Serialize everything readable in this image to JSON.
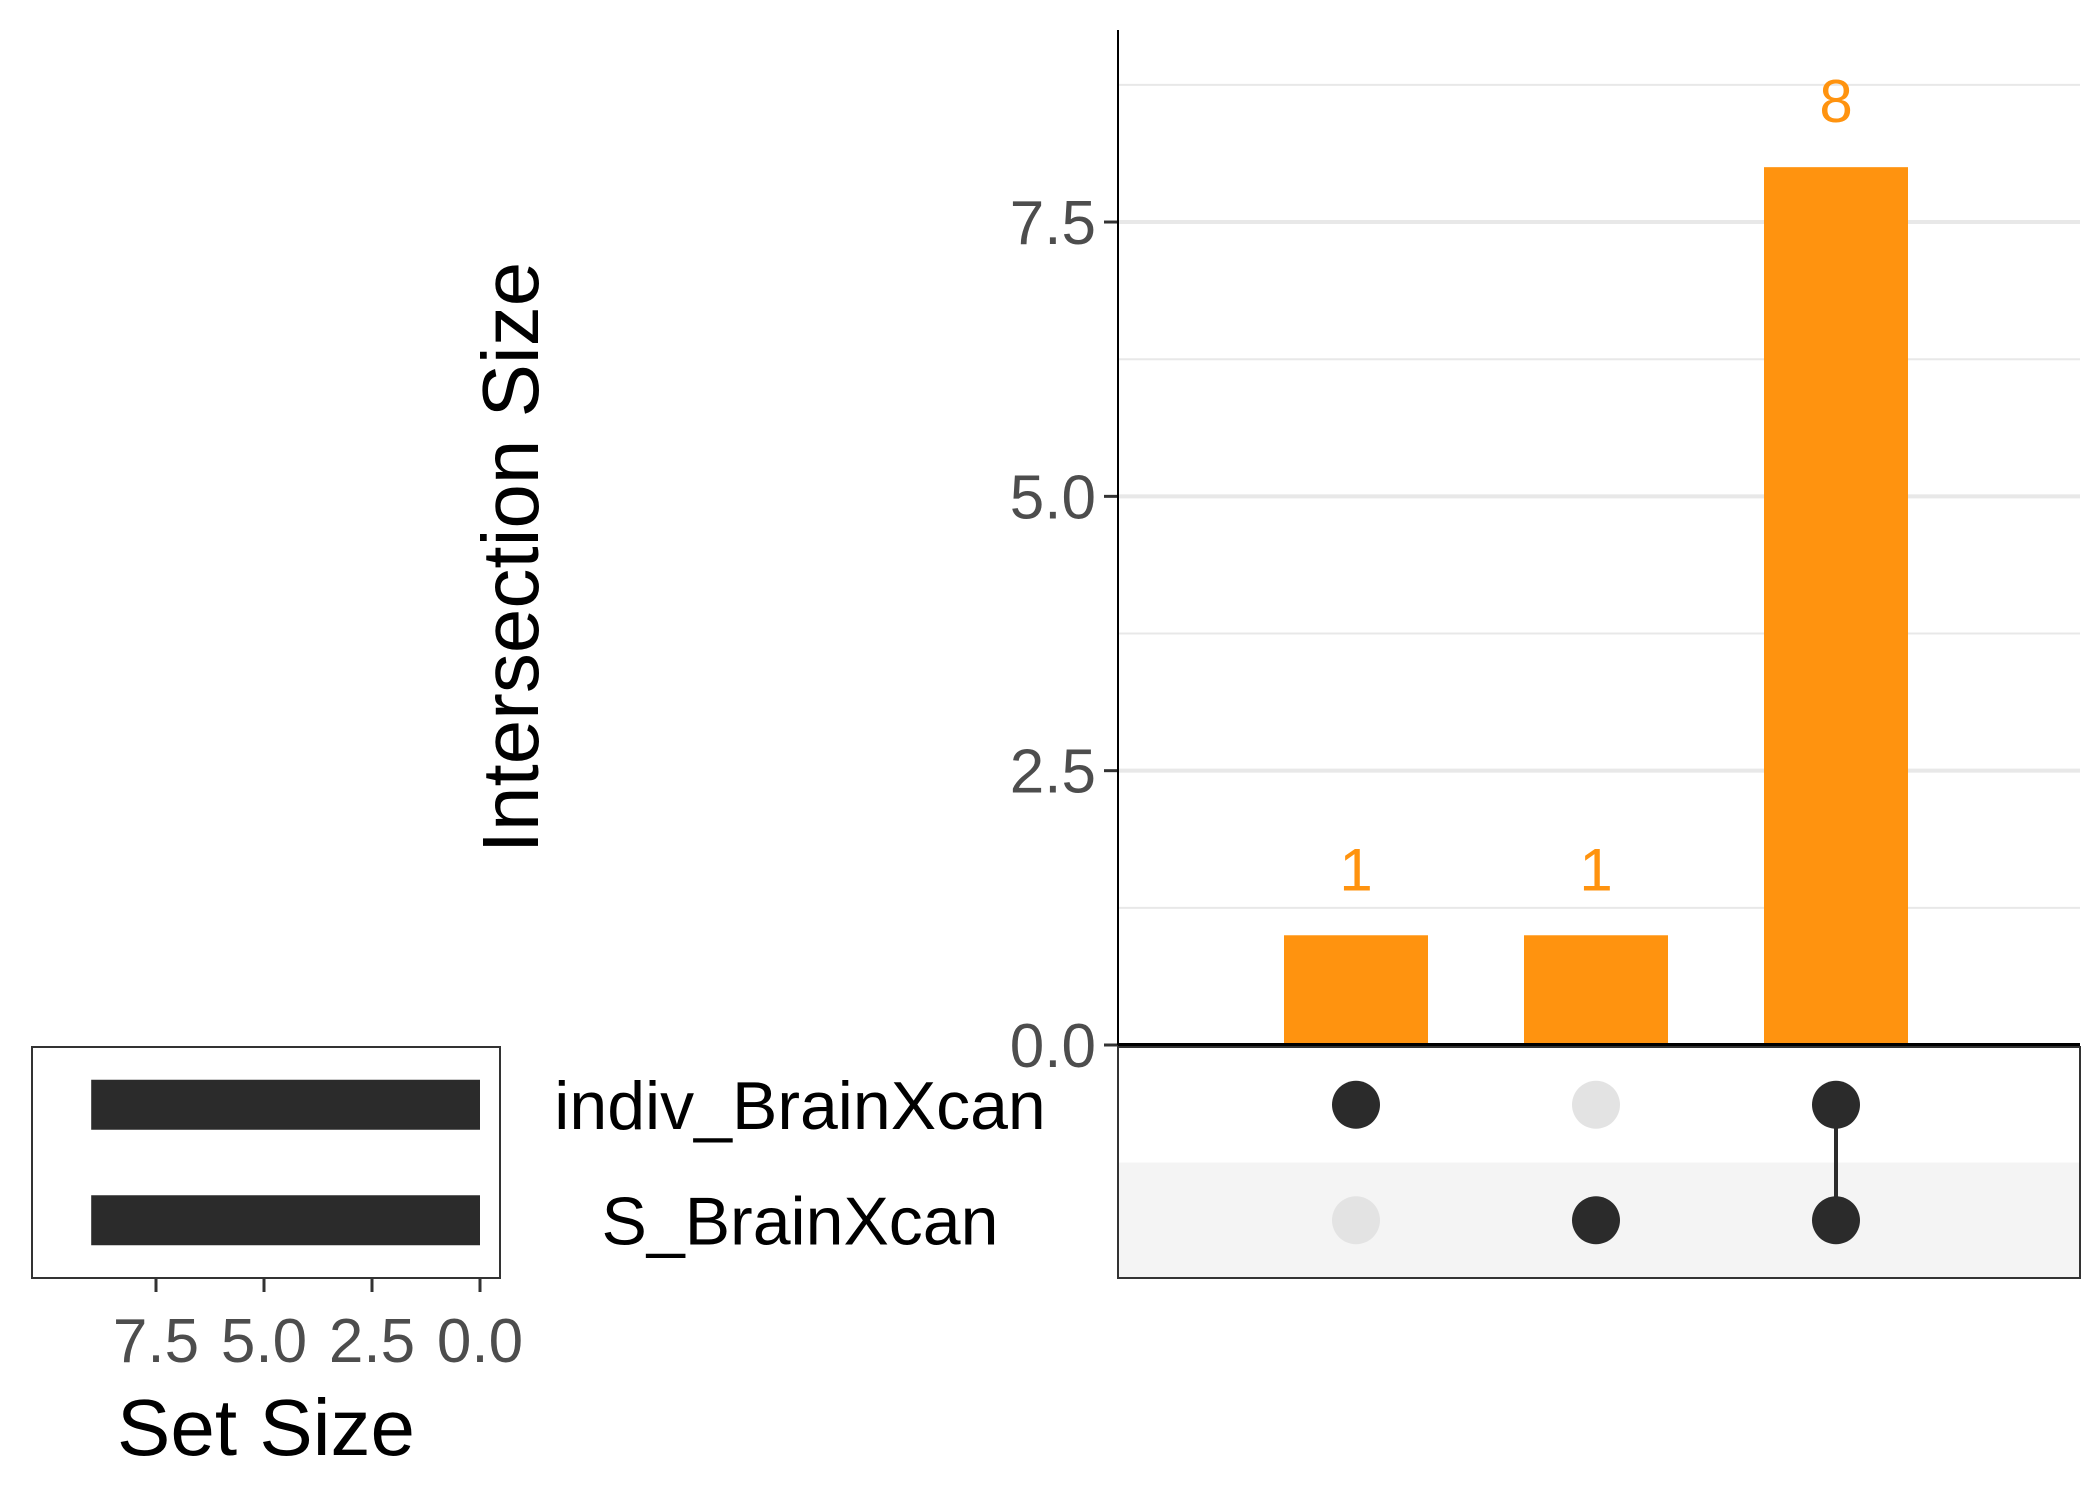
{
  "chart_data": {
    "type": "bar",
    "subtype": "upset",
    "title": "",
    "ylabel": "Intersection Size",
    "xlabel_sets": "Set Size",
    "ylim": [
      0,
      9.25
    ],
    "yticks": [
      "0.0",
      "2.5",
      "5.0",
      "7.5"
    ],
    "ytick_values": [
      0,
      2.5,
      5,
      7.5
    ],
    "sets": [
      "indiv_BrainXcan",
      "S_BrainXcan"
    ],
    "set_sizes": [
      9,
      9
    ],
    "set_size_xlim": [
      0,
      10
    ],
    "set_size_ticks": [
      "7.5",
      "5.0",
      "2.5",
      "0.0"
    ],
    "set_size_tick_values": [
      7.5,
      5,
      2.5,
      0
    ],
    "intersections": [
      {
        "members": [
          true,
          false
        ],
        "value": 1,
        "label": "1"
      },
      {
        "members": [
          false,
          true
        ],
        "value": 1,
        "label": "1"
      },
      {
        "members": [
          true,
          true
        ],
        "value": 8,
        "label": "8"
      }
    ],
    "grid": true,
    "colors": {
      "bar": "#ff930f",
      "set_bar": "#2b2b2b",
      "dot_active": "#2b2b2b",
      "dot_inactive": "#e3e3e3",
      "grid": "#e8e8e8",
      "stripe": "#f4f4f4"
    }
  }
}
